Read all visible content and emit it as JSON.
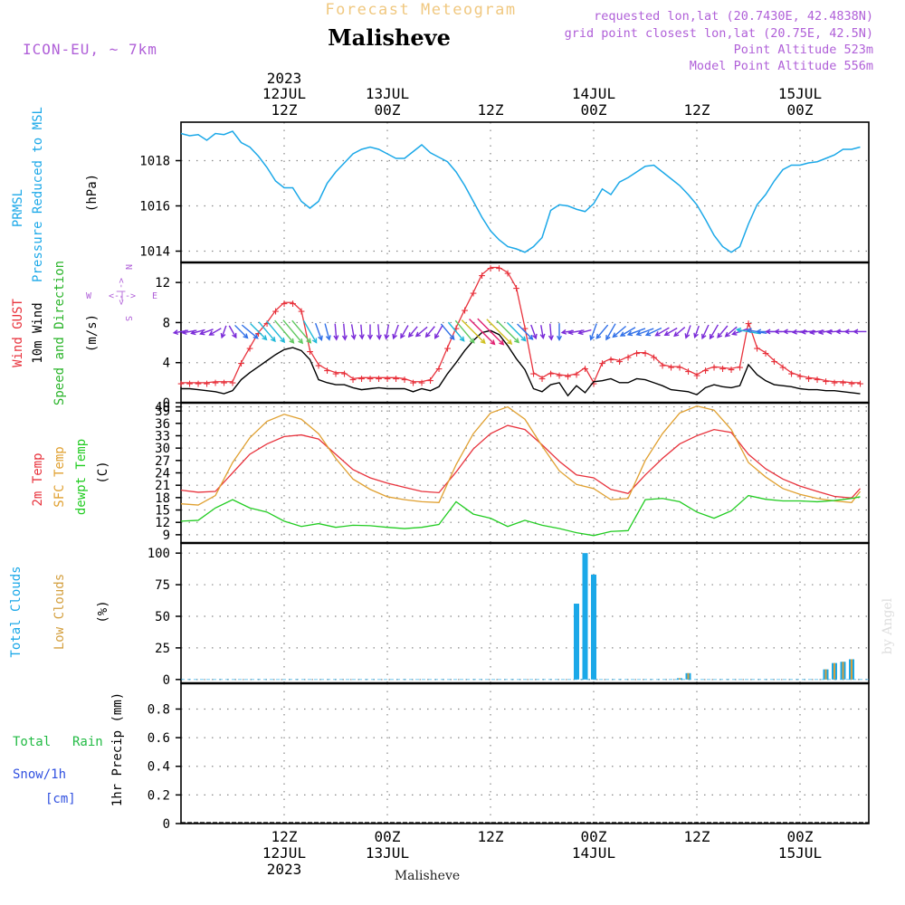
{
  "header": {
    "banner": "Forecast Meteogram",
    "location": "Malisheve",
    "model": "ICON-EU, ~ 7km",
    "requested": "requested lon,lat (20.7430E, 42.4838N)",
    "gridpoint": "grid point closest lon,lat (20.75E, 42.5N)",
    "point_alt": "Point Altitude 523m",
    "model_alt": "Model Point Altitude 556m",
    "footer_name": "Malisheve",
    "credit": "by Angel"
  },
  "time_axis": {
    "top_year": "2023",
    "top_ticks": [
      {
        "h": 12,
        "l1": "12JUL",
        "l2": "12Z"
      },
      {
        "h": 24,
        "l1": "13JUL",
        "l2": "00Z"
      },
      {
        "h": 36,
        "l1": "",
        "l2": "12Z"
      },
      {
        "h": 48,
        "l1": "14JUL",
        "l2": "00Z"
      },
      {
        "h": 60,
        "l1": "",
        "l2": "12Z"
      },
      {
        "h": 72,
        "l1": "15JUL",
        "l2": "00Z"
      }
    ],
    "bottom_ticks": [
      {
        "h": 12,
        "l1": "12Z",
        "l2": "12JUL",
        "l3": "2023"
      },
      {
        "h": 24,
        "l1": "00Z",
        "l2": "13JUL",
        "l3": ""
      },
      {
        "h": 36,
        "l1": "12Z",
        "l2": "",
        "l3": ""
      },
      {
        "h": 48,
        "l1": "00Z",
        "l2": "14JUL",
        "l3": ""
      },
      {
        "h": 60,
        "l1": "12Z",
        "l2": "",
        "l3": ""
      },
      {
        "h": 72,
        "l1": "00Z",
        "l2": "15JUL",
        "l3": ""
      }
    ]
  },
  "colors": {
    "pressure": "#1ba8e8",
    "gust": "#e8323c",
    "wind10m": "#000000",
    "dir": "#2ab42a",
    "t2m": "#e8323c",
    "tsfc": "#e0a030",
    "dewpt": "#22cc22",
    "total_cloud": "#1ba8e8",
    "low_cloud": "#d4a040",
    "rain": "#22bb44",
    "snow": "#3050e0",
    "header_purple": "#b060d8",
    "banner": "#f0c880",
    "grid": "#888888"
  },
  "panels": {
    "pressure": {
      "label1": "PRMSL",
      "label2": "Pressure Reduced to MSL",
      "unit": "(hPa)"
    },
    "wind": {
      "label_gust": "Wind GUST",
      "label_10m": "10m Wind",
      "label_dir": "Speed and Direction",
      "unit": "(m/s)",
      "compass_n": "N",
      "compass_s": "S",
      "compass_e": "E",
      "compass_w": "W",
      "compass_mid": "<-|->"
    },
    "temp": {
      "label_t2m": "2m Temp",
      "label_tsfc": "SFC Temp",
      "label_dew": "dewpt Temp",
      "unit": "(C)"
    },
    "cloud": {
      "label_total": "Total Clouds",
      "label_low": "Low Clouds",
      "unit": "(%)"
    },
    "precip": {
      "label_total": "Total",
      "label_rain": "Rain",
      "label_snow": "Snow/1h",
      "label_cm": "[cm]",
      "unit": "1hr Precip (mm)"
    }
  },
  "chart_data": [
    {
      "type": "line",
      "title": "PRMSL Pressure Reduced to MSL",
      "ylabel": "(hPa)",
      "x_unit": "hours from 12JUL 00Z",
      "ylim": [
        1013.5,
        1019.7
      ],
      "yticks": [
        1014,
        1016,
        1018
      ],
      "series": [
        {
          "name": "PRMSL",
          "x": [
            0,
            1,
            2,
            3,
            4,
            5,
            6,
            7,
            8,
            9,
            10,
            11,
            12,
            13,
            14,
            15,
            16,
            17,
            18,
            19,
            20,
            21,
            22,
            23,
            24,
            25,
            26,
            27,
            28,
            29,
            30,
            31,
            32,
            33,
            34,
            35,
            36,
            37,
            38,
            39,
            40,
            41,
            42,
            43,
            44,
            45,
            46,
            47,
            48,
            49,
            50,
            51,
            52,
            53,
            54,
            55,
            56,
            57,
            58,
            59,
            60,
            61,
            62,
            63,
            64,
            65,
            66,
            67,
            68,
            69,
            70,
            71,
            72,
            73,
            74,
            75,
            76,
            77,
            78,
            79
          ],
          "values": [
            1019.2,
            1019.1,
            1019.15,
            1018.9,
            1019.2,
            1019.15,
            1019.3,
            1018.8,
            1018.6,
            1018.2,
            1017.7,
            1017.1,
            1016.8,
            1016.8,
            1016.2,
            1015.9,
            1016.2,
            1017,
            1017.5,
            1017.9,
            1018.3,
            1018.5,
            1018.6,
            1018.5,
            1018.3,
            1018.1,
            1018.1,
            1018.4,
            1018.7,
            1018.35,
            1018.15,
            1017.95,
            1017.5,
            1016.9,
            1016.2,
            1015.5,
            1014.9,
            1014.5,
            1014.2,
            1014.1,
            1013.95,
            1014.2,
            1014.6,
            1015.8,
            1016.05,
            1016.0,
            1015.85,
            1015.75,
            1016.1,
            1016.75,
            1016.5,
            1017.05,
            1017.25,
            1017.5,
            1017.75,
            1017.8,
            1017.5,
            1017.2,
            1016.9,
            1016.5,
            1016.05,
            1015.4,
            1014.7,
            1014.2,
            1013.95,
            1014.2,
            1015.2,
            1016.05,
            1016.5,
            1017.1,
            1017.6,
            1017.8,
            1017.8,
            1017.9,
            1017.95,
            1018.1,
            1018.25,
            1018.5,
            1018.5,
            1018.6
          ]
        }
      ]
    },
    {
      "type": "line",
      "title": "Wind GUST / 10m Wind Speed and Direction",
      "ylabel": "(m/s)",
      "x_unit": "hours from 12JUL 00Z",
      "ylim": [
        0,
        14
      ],
      "yticks": [
        0,
        4,
        8,
        12
      ],
      "series": [
        {
          "name": "Wind GUST",
          "x": [
            0,
            1,
            2,
            3,
            4,
            5,
            6,
            7,
            8,
            9,
            10,
            11,
            12,
            13,
            14,
            15,
            16,
            17,
            18,
            19,
            20,
            21,
            22,
            23,
            24,
            25,
            26,
            27,
            28,
            29,
            30,
            31,
            32,
            33,
            34,
            35,
            36,
            37,
            38,
            39,
            40,
            41,
            42,
            43,
            44,
            45,
            46,
            47,
            48,
            49,
            50,
            51,
            52,
            53,
            54,
            55,
            56,
            57,
            58,
            59,
            60,
            61,
            62,
            63,
            64,
            65,
            66,
            67,
            68,
            69,
            70,
            71,
            72,
            73,
            74,
            75,
            76,
            77,
            78,
            79
          ],
          "values": [
            2,
            2,
            2,
            2,
            2.1,
            2.1,
            2.1,
            4,
            5.5,
            7,
            8,
            9.2,
            10,
            10,
            9.2,
            5.2,
            3.8,
            3.3,
            3,
            3,
            2.4,
            2.5,
            2.5,
            2.5,
            2.5,
            2.5,
            2.4,
            2.1,
            2.1,
            2.3,
            3.5,
            5.5,
            7.5,
            9.3,
            11,
            12.8,
            13.5,
            13.5,
            13,
            11.5,
            7.5,
            3,
            2.5,
            3,
            2.8,
            2.7,
            2.9,
            3.5,
            2,
            4,
            4.4,
            4.2,
            4.6,
            5,
            5,
            4.6,
            3.8,
            3.6,
            3.6,
            3.2,
            2.8,
            3.3,
            3.6,
            3.5,
            3.4,
            3.6,
            8,
            5.5,
            5,
            4.2,
            3.6,
            3,
            2.7,
            2.5,
            2.4,
            2.2,
            2.1,
            2.1,
            2,
            2
          ]
        },
        {
          "name": "10m Wind",
          "x": [
            0,
            1,
            2,
            3,
            4,
            5,
            6,
            7,
            8,
            9,
            10,
            11,
            12,
            13,
            14,
            15,
            16,
            17,
            18,
            19,
            20,
            21,
            22,
            23,
            24,
            25,
            26,
            27,
            28,
            29,
            30,
            31,
            32,
            33,
            34,
            35,
            36,
            37,
            38,
            39,
            40,
            41,
            42,
            43,
            44,
            45,
            46,
            47,
            48,
            49,
            50,
            51,
            52,
            53,
            54,
            55,
            56,
            57,
            58,
            59,
            60,
            61,
            62,
            63,
            64,
            65,
            66,
            67,
            68,
            69,
            70,
            71,
            72,
            73,
            74,
            75,
            76,
            77,
            78,
            79
          ],
          "values": [
            1.4,
            1.4,
            1.3,
            1.2,
            1.1,
            0.9,
            1.2,
            2.3,
            3,
            3.6,
            4.2,
            4.8,
            5.3,
            5.5,
            5.2,
            4.3,
            2.3,
            2,
            1.8,
            1.8,
            1.5,
            1.3,
            1.4,
            1.5,
            1.4,
            1.4,
            1.4,
            1.1,
            1.4,
            1.2,
            1.6,
            2.9,
            4,
            5.2,
            6.2,
            7,
            7.2,
            6.8,
            5.7,
            4.4,
            3.3,
            1.4,
            1.1,
            1.8,
            2,
            0.7,
            1.7,
            1,
            2.1,
            2.2,
            2.4,
            2,
            2,
            2.4,
            2.3,
            2,
            1.7,
            1.3,
            1.2,
            1.1,
            0.8,
            1.5,
            1.8,
            1.6,
            1.5,
            1.7,
            3.8,
            2.8,
            2.2,
            1.8,
            1.7,
            1.6,
            1.4,
            1.3,
            1.3,
            1.2,
            1.2,
            1.1,
            1,
            0.9
          ]
        }
      ]
    },
    {
      "type": "line",
      "title": "2m Temp / SFC Temp / dewpt Temp",
      "ylabel": "(C)",
      "x_unit": "hours from 12JUL 00Z",
      "ylim": [
        7,
        41
      ],
      "yticks": [
        9,
        12,
        15,
        18,
        21,
        24,
        27,
        30,
        33,
        36,
        39,
        40
      ],
      "series": [
        {
          "name": "2m Temp",
          "x": [
            0,
            2,
            4,
            6,
            8,
            10,
            12,
            14,
            16,
            18,
            20,
            22,
            24,
            26,
            28,
            30,
            32,
            34,
            36,
            38,
            40,
            42,
            44,
            46,
            48,
            50,
            52,
            54,
            56,
            58,
            60,
            62,
            64,
            66,
            68,
            70,
            72,
            74,
            76,
            78,
            79
          ],
          "values": [
            19.8,
            19.3,
            19.5,
            24,
            28.5,
            31,
            32.8,
            33.2,
            32.2,
            28.5,
            24.8,
            22.8,
            21.5,
            20.5,
            19.5,
            19.2,
            24.2,
            29.8,
            33.5,
            35.5,
            34.5,
            30.8,
            26.8,
            23.5,
            22.8,
            20,
            19,
            23.5,
            27.5,
            31,
            33,
            34.5,
            33.8,
            28.5,
            25,
            22.5,
            20.8,
            19.5,
            18.3,
            17.9,
            20.2
          ]
        },
        {
          "name": "SFC Temp",
          "x": [
            0,
            2,
            4,
            6,
            8,
            10,
            12,
            14,
            16,
            18,
            20,
            22,
            24,
            26,
            28,
            30,
            32,
            34,
            36,
            38,
            40,
            42,
            44,
            46,
            48,
            50,
            52,
            54,
            56,
            58,
            60,
            62,
            64,
            66,
            68,
            70,
            72,
            74,
            76,
            78,
            79
          ],
          "values": [
            16.5,
            16.2,
            18.5,
            26.5,
            32.5,
            36.5,
            38.2,
            37,
            33.5,
            27.5,
            22.5,
            20,
            18.2,
            17.5,
            17,
            16.8,
            26,
            33.5,
            38.5,
            40,
            37,
            30.5,
            24.5,
            21.2,
            20.2,
            17.5,
            17.8,
            27,
            33.5,
            38.5,
            40.2,
            39.2,
            34.5,
            26.5,
            23,
            20.2,
            18.8,
            17.8,
            17.2,
            16.8,
            19.5
          ]
        },
        {
          "name": "dewpt Temp",
          "x": [
            0,
            2,
            4,
            6,
            8,
            10,
            12,
            14,
            16,
            18,
            20,
            22,
            24,
            26,
            28,
            30,
            32,
            34,
            36,
            38,
            40,
            42,
            44,
            46,
            48,
            50,
            52,
            54,
            56,
            58,
            60,
            62,
            64,
            66,
            68,
            70,
            72,
            74,
            76,
            78,
            79
          ],
          "values": [
            12.3,
            12.5,
            15.5,
            17.5,
            15.5,
            14.5,
            12.3,
            11,
            11.7,
            10.8,
            11.3,
            11.2,
            10.8,
            10.5,
            10.8,
            11.5,
            17,
            14,
            13,
            11,
            12.5,
            11.3,
            10.5,
            9.5,
            8.8,
            9.8,
            10,
            17.5,
            17.8,
            17,
            14.5,
            13,
            14.8,
            18.5,
            17.6,
            17.2,
            17.2,
            17,
            17.3,
            17.8,
            18.2
          ]
        }
      ]
    },
    {
      "type": "bar",
      "title": "Total Clouds / Low Clouds",
      "ylabel": "(%)",
      "x_unit": "hours from 12JUL 00Z",
      "ylim": [
        -3,
        108
      ],
      "yticks": [
        0,
        25,
        50,
        75,
        100
      ],
      "series": [
        {
          "name": "Total Clouds",
          "x": [
            46,
            47,
            48,
            58,
            59,
            75,
            76,
            77,
            78
          ],
          "values": [
            60,
            100,
            83,
            1,
            5,
            8,
            13,
            14,
            16
          ]
        },
        {
          "name": "Low Clouds",
          "x": [
            46,
            47,
            48,
            58,
            59,
            75,
            76,
            77,
            78
          ],
          "values": [
            0,
            0,
            0,
            1,
            5,
            8,
            13,
            14,
            16
          ]
        }
      ]
    },
    {
      "type": "bar",
      "title": "Total Rain Snow/1h",
      "ylabel": "1hr Precip (mm)",
      "x_unit": "hours from 12JUL 00Z",
      "ylim": [
        0,
        0.98
      ],
      "yticks": [
        0,
        0.2,
        0.4,
        0.6,
        0.8
      ],
      "series": [
        {
          "name": "Total Rain",
          "x": [],
          "values": []
        },
        {
          "name": "Snow/1h",
          "x": [],
          "values": []
        }
      ]
    }
  ],
  "wind_dirs": {
    "x": [
      0,
      1,
      2,
      3,
      4,
      5,
      6,
      7,
      8,
      9,
      10,
      11,
      12,
      13,
      14,
      15,
      16,
      17,
      18,
      19,
      20,
      21,
      22,
      23,
      24,
      25,
      26,
      27,
      28,
      29,
      30,
      31,
      32,
      33,
      34,
      35,
      36,
      37,
      38,
      39,
      40,
      41,
      42,
      43,
      44,
      45,
      46,
      47,
      48,
      49,
      50,
      51,
      52,
      53,
      54,
      55,
      56,
      57,
      58,
      59,
      60,
      61,
      62,
      63,
      64,
      65,
      66,
      67,
      68,
      69,
      70,
      71,
      72,
      73,
      74,
      75,
      76,
      77,
      78,
      79
    ],
    "to_deg": [
      260,
      260,
      255,
      250,
      240,
      200,
      150,
      135,
      130,
      135,
      140,
      140,
      140,
      140,
      140,
      150,
      160,
      165,
      175,
      175,
      170,
      175,
      180,
      175,
      190,
      200,
      210,
      220,
      230,
      220,
      210,
      140,
      140,
      140,
      135,
      135,
      135,
      135,
      135,
      135,
      135,
      160,
      170,
      175,
      180,
      260,
      260,
      255,
      200,
      220,
      210,
      230,
      240,
      250,
      250,
      245,
      240,
      240,
      230,
      200,
      200,
      205,
      210,
      220,
      230,
      250,
      280,
      280,
      270,
      270,
      270,
      270,
      265,
      265,
      260,
      260,
      265,
      270,
      270,
      270
    ]
  }
}
